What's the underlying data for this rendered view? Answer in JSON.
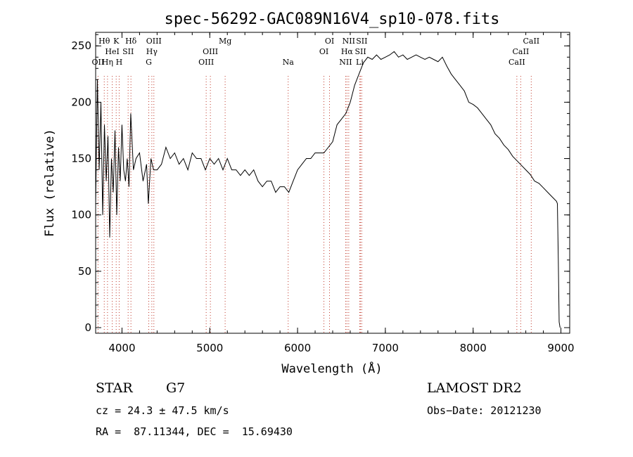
{
  "chart_data": {
    "type": "line",
    "title": "spec-56292-GAC089N16V4_sp10-078.fits",
    "xlabel": "Wavelength (Å)",
    "ylabel": "Flux (relative)",
    "xlim": [
      3700,
      9100
    ],
    "ylim": [
      -5,
      262
    ],
    "xticks": [
      4000,
      5000,
      6000,
      7000,
      8000,
      9000
    ],
    "xtick_labels": [
      "4000",
      "5000",
      "6000",
      "7000",
      "8000",
      "9000"
    ],
    "yticks": [
      0,
      50,
      100,
      150,
      200,
      250
    ],
    "ytick_labels": [
      "0",
      "50",
      "100",
      "150",
      "200",
      "250"
    ],
    "grid": false,
    "series": [
      {
        "color": "#000000",
        "x": [
          3700,
          3720,
          3740,
          3760,
          3780,
          3800,
          3820,
          3840,
          3860,
          3880,
          3900,
          3920,
          3940,
          3960,
          3980,
          4000,
          4020,
          4040,
          4060,
          4080,
          4100,
          4130,
          4160,
          4200,
          4240,
          4280,
          4300,
          4330,
          4360,
          4400,
          4450,
          4500,
          4550,
          4600,
          4650,
          4700,
          4750,
          4800,
          4850,
          4900,
          4950,
          5000,
          5050,
          5100,
          5150,
          5200,
          5250,
          5300,
          5350,
          5400,
          5450,
          5500,
          5550,
          5600,
          5650,
          5700,
          5750,
          5800,
          5850,
          5900,
          5950,
          6000,
          6050,
          6100,
          6150,
          6200,
          6250,
          6300,
          6350,
          6400,
          6450,
          6500,
          6550,
          6600,
          6650,
          6700,
          6750,
          6800,
          6850,
          6900,
          6950,
          7000,
          7050,
          7100,
          7150,
          7200,
          7250,
          7300,
          7350,
          7400,
          7450,
          7500,
          7550,
          7600,
          7650,
          7700,
          7750,
          7800,
          7850,
          7900,
          7950,
          8000,
          8050,
          8100,
          8150,
          8200,
          8250,
          8300,
          8350,
          8400,
          8450,
          8500,
          8550,
          8600,
          8650,
          8700,
          8750,
          8800,
          8850,
          8900,
          8950,
          8960,
          8970,
          8980,
          8990
        ],
        "y": [
          110,
          220,
          140,
          200,
          100,
          180,
          130,
          170,
          80,
          150,
          120,
          175,
          100,
          160,
          130,
          180,
          140,
          130,
          150,
          125,
          190,
          140,
          150,
          155,
          130,
          145,
          110,
          150,
          140,
          140,
          145,
          160,
          150,
          155,
          145,
          150,
          140,
          155,
          150,
          150,
          140,
          150,
          145,
          150,
          140,
          150,
          140,
          140,
          135,
          140,
          135,
          140,
          130,
          125,
          130,
          130,
          120,
          125,
          125,
          120,
          130,
          140,
          145,
          150,
          150,
          155,
          155,
          155,
          160,
          165,
          180,
          185,
          190,
          200,
          215,
          225,
          235,
          240,
          238,
          242,
          238,
          240,
          242,
          245,
          240,
          242,
          238,
          240,
          242,
          240,
          238,
          240,
          238,
          236,
          240,
          232,
          225,
          220,
          215,
          210,
          200,
          198,
          195,
          190,
          185,
          180,
          172,
          168,
          162,
          158,
          152,
          148,
          144,
          140,
          136,
          130,
          128,
          124,
          120,
          116,
          112,
          110,
          60,
          5,
          0
        ]
      }
    ],
    "spectral_lines": [
      {
        "label": "OII",
        "x": 3727,
        "row": 2
      },
      {
        "label": "Hθ",
        "x": 3798,
        "row": 0
      },
      {
        "label": "Hη",
        "x": 3835,
        "row": 2
      },
      {
        "label": "HeI",
        "x": 3889,
        "row": 1
      },
      {
        "label": "K",
        "x": 3934,
        "row": 0
      },
      {
        "label": "H",
        "x": 3968,
        "row": 2
      },
      {
        "label": "SII",
        "x": 4070,
        "row": 1
      },
      {
        "label": "Hδ",
        "x": 4102,
        "row": 0
      },
      {
        "label": "G",
        "x": 4305,
        "row": 2
      },
      {
        "label": "Hγ",
        "x": 4340,
        "row": 1
      },
      {
        "label": "OIII",
        "x": 4363,
        "row": 0
      },
      {
        "label": "OIII",
        "x": 4959,
        "row": 2
      },
      {
        "label": "OIII",
        "x": 5007,
        "row": 1
      },
      {
        "label": "Mg",
        "x": 5175,
        "row": 0
      },
      {
        "label": "Na",
        "x": 5893,
        "row": 2
      },
      {
        "label": "OI",
        "x": 6300,
        "row": 1
      },
      {
        "label": "OI",
        "x": 6364,
        "row": 0
      },
      {
        "label": "NII",
        "x": 6548,
        "row": 2
      },
      {
        "label": "Hα",
        "x": 6563,
        "row": 1
      },
      {
        "label": "NII",
        "x": 6583,
        "row": 0
      },
      {
        "label": "Li",
        "x": 6708,
        "row": 2
      },
      {
        "label": "SII",
        "x": 6717,
        "row": 1
      },
      {
        "label": "SII",
        "x": 6731,
        "row": 0
      },
      {
        "label": "CaII",
        "x": 8498,
        "row": 2
      },
      {
        "label": "CaII",
        "x": 8542,
        "row": 1
      },
      {
        "label": "CaII",
        "x": 8662,
        "row": 0
      }
    ]
  },
  "info": {
    "object_class": "STAR",
    "subclass": "G7",
    "release": "LAMOST DR2",
    "cz": "cz = 24.3 ± 47.5 km/s",
    "obs_date": "Obs−Date: 20121230",
    "coords": "RA =  87.11344, DEC =  15.69430"
  }
}
